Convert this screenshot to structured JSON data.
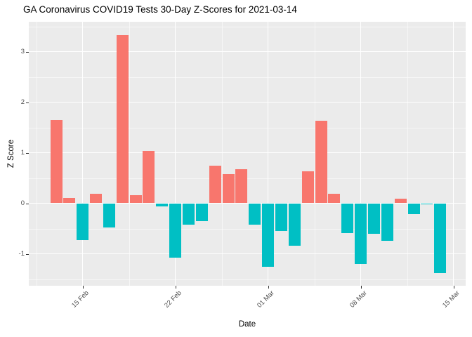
{
  "chart_data": {
    "type": "bar",
    "title": "GA Coronavirus COVID19 Tests 30-Day Z-Scores for 2021-03-14",
    "xlabel": "Date",
    "ylabel": "Z Score",
    "categories": [
      "2021-02-13",
      "2021-02-14",
      "2021-02-15",
      "2021-02-16",
      "2021-02-17",
      "2021-02-18",
      "2021-02-19",
      "2021-02-20",
      "2021-02-21",
      "2021-02-22",
      "2021-02-23",
      "2021-02-24",
      "2021-02-25",
      "2021-02-26",
      "2021-02-27",
      "2021-02-28",
      "2021-03-01",
      "2021-03-02",
      "2021-03-03",
      "2021-03-04",
      "2021-03-05",
      "2021-03-06",
      "2021-03-07",
      "2021-03-08",
      "2021-03-09",
      "2021-03-10",
      "2021-03-11",
      "2021-03-12",
      "2021-03-13",
      "2021-03-14"
    ],
    "values": [
      1.65,
      0.1,
      -0.73,
      0.19,
      -0.48,
      3.33,
      0.16,
      1.04,
      -0.06,
      -1.07,
      -0.42,
      -0.35,
      0.74,
      0.58,
      0.68,
      -0.43,
      -1.26,
      -0.55,
      -0.84,
      0.63,
      1.63,
      0.19,
      -0.59,
      -1.2,
      -0.6,
      -0.74,
      0.09,
      -0.22,
      -0.02,
      -1.38
    ],
    "x_ticks": [
      {
        "label": "15 Feb",
        "day_offset": 2
      },
      {
        "label": "22 Feb",
        "day_offset": 9
      },
      {
        "label": "01 Mar",
        "day_offset": 16
      },
      {
        "label": "08 Mar",
        "day_offset": 23
      },
      {
        "label": "15 Mar",
        "day_offset": 30
      }
    ],
    "y_ticks": [
      3,
      2,
      1,
      0,
      -1
    ],
    "ylim": [
      -1.63,
      3.59
    ],
    "grid": "on",
    "legend": "none",
    "colors": {
      "positive_bar": "#F8766D",
      "negative_bar": "#00BFC4",
      "panel_background": "#EBEBEB",
      "grid_major": "#FFFFFF",
      "axis_text": "#4D4D4D"
    }
  }
}
